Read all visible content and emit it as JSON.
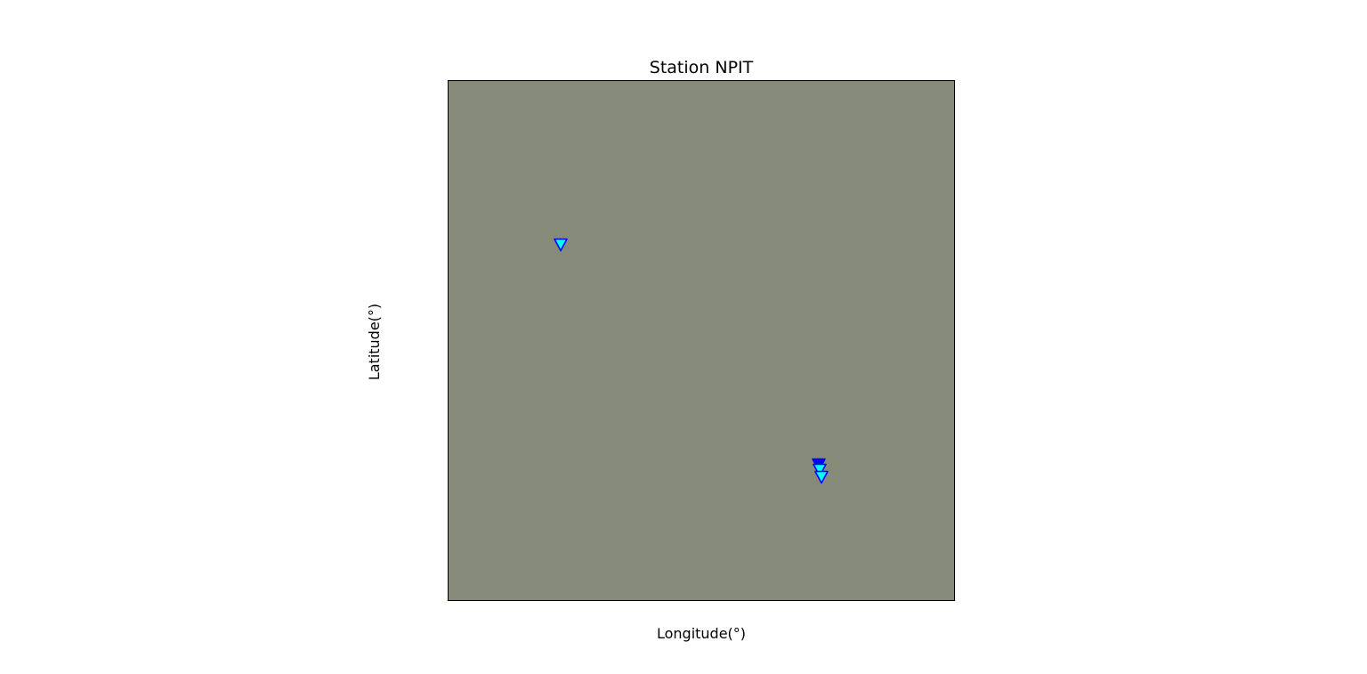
{
  "map": {
    "title": "Station NPIT",
    "xlabel": "Longitude(°)",
    "ylabel": "Latitude(°)",
    "land_color": "#858b78",
    "frame_color": "#000000",
    "marker": "inverted-triangle",
    "markers": [
      {
        "fill": "#00ffff",
        "stroke": "#0000ff"
      },
      {
        "fill": "#0000ff",
        "stroke": "#0000ff"
      },
      {
        "fill": "#00ffff",
        "stroke": "#0000ff"
      },
      {
        "fill": "#00ffff",
        "stroke": "#0000ff"
      }
    ]
  }
}
